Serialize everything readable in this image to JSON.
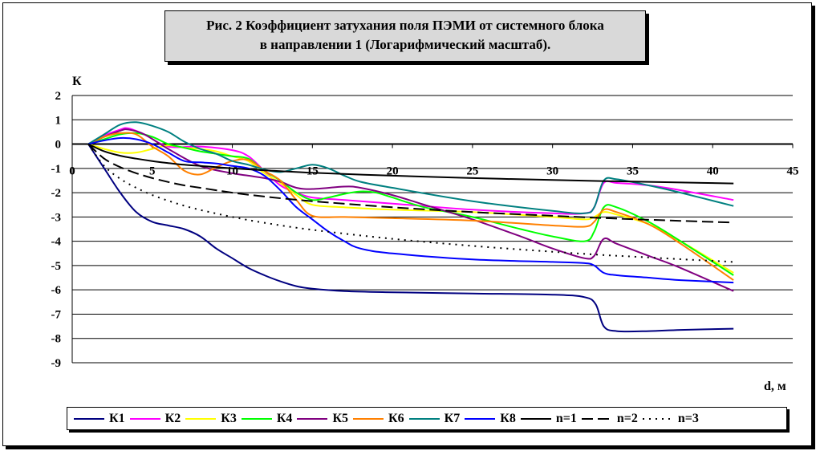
{
  "title": {
    "line1": "Рис. 2 Коэффициент затухания поля ПЭМИ от системного блока",
    "line2": "в направлении 1 (Логарифмический масштаб)."
  },
  "chart_data": {
    "type": "line",
    "title": "Рис. 2 Коэффициент затухания поля ПЭМИ от системного блока в направлении 1 (Логарифмический масштаб).",
    "xlabel": "d, м",
    "ylabel": "К",
    "xlim": [
      0,
      45
    ],
    "ylim": [
      -9,
      2
    ],
    "xticks": [
      0,
      5,
      10,
      15,
      20,
      25,
      30,
      35,
      40,
      45
    ],
    "yticks": [
      2,
      1,
      0,
      -1,
      -2,
      -3,
      -4,
      -5,
      -6,
      -7,
      -8,
      -9
    ],
    "grid": "horizontal",
    "legend_position": "bottom",
    "series": [
      {
        "name": "К1",
        "color": "#000080",
        "dash": "solid",
        "points": [
          [
            1,
            0
          ],
          [
            2,
            -1
          ],
          [
            3,
            -2
          ],
          [
            4,
            -2.8
          ],
          [
            5,
            -3.2
          ],
          [
            6,
            -3.35
          ],
          [
            7,
            -3.5
          ],
          [
            8,
            -3.8
          ],
          [
            9,
            -4.3
          ],
          [
            10,
            -4.7
          ],
          [
            11,
            -5.1
          ],
          [
            12,
            -5.4
          ],
          [
            13,
            -5.65
          ],
          [
            14,
            -5.85
          ],
          [
            15,
            -5.95
          ],
          [
            17,
            -6.05
          ],
          [
            20,
            -6.1
          ],
          [
            25,
            -6.15
          ],
          [
            30,
            -6.2
          ],
          [
            32,
            -6.3
          ],
          [
            32.7,
            -6.6
          ],
          [
            33.2,
            -7.5
          ],
          [
            34,
            -7.7
          ],
          [
            36,
            -7.7
          ],
          [
            38,
            -7.65
          ],
          [
            41.3,
            -7.6
          ]
        ]
      },
      {
        "name": "К2",
        "color": "#ff00ff",
        "dash": "solid",
        "points": [
          [
            1,
            0
          ],
          [
            2,
            0.35
          ],
          [
            3,
            0.6
          ],
          [
            3.5,
            0.65
          ],
          [
            4.5,
            0.4
          ],
          [
            6,
            -0.1
          ],
          [
            8,
            -0.1
          ],
          [
            10,
            -0.25
          ],
          [
            11,
            -0.5
          ],
          [
            12,
            -1.1
          ],
          [
            13,
            -1.7
          ],
          [
            14,
            -2.0
          ],
          [
            15,
            -2.2
          ],
          [
            17,
            -2.3
          ],
          [
            20,
            -2.45
          ],
          [
            25,
            -2.7
          ],
          [
            30,
            -2.85
          ],
          [
            32,
            -2.85
          ],
          [
            32.6,
            -2.6
          ],
          [
            33.2,
            -1.6
          ],
          [
            34,
            -1.6
          ],
          [
            36,
            -1.7
          ],
          [
            38,
            -1.9
          ],
          [
            41.3,
            -2.3
          ]
        ]
      },
      {
        "name": "К3",
        "color": "#ffff00",
        "dash": "solid",
        "points": [
          [
            1,
            0
          ],
          [
            2,
            -0.2
          ],
          [
            3,
            -0.35
          ],
          [
            4,
            -0.35
          ],
          [
            5,
            -0.2
          ],
          [
            6,
            -0.05
          ],
          [
            7,
            -0.15
          ],
          [
            8,
            -0.2
          ],
          [
            9,
            -0.3
          ],
          [
            10,
            -0.5
          ],
          [
            11,
            -0.7
          ],
          [
            12,
            -1.2
          ],
          [
            13,
            -1.6
          ],
          [
            14,
            -2.1
          ],
          [
            15,
            -2.5
          ],
          [
            17,
            -2.6
          ],
          [
            20,
            -2.7
          ],
          [
            25,
            -2.8
          ],
          [
            30,
            -3.0
          ],
          [
            32,
            -3.1
          ],
          [
            32.6,
            -3.0
          ],
          [
            33.2,
            -2.8
          ],
          [
            34,
            -2.9
          ],
          [
            36,
            -3.3
          ],
          [
            38,
            -4.0
          ],
          [
            41.3,
            -5.3
          ]
        ]
      },
      {
        "name": "К4",
        "color": "#00ff00",
        "dash": "solid",
        "points": [
          [
            1,
            0
          ],
          [
            2,
            0.2
          ],
          [
            3,
            0.4
          ],
          [
            4,
            0.45
          ],
          [
            5,
            0.3
          ],
          [
            6,
            0.0
          ],
          [
            7,
            -0.15
          ],
          [
            8,
            -0.3
          ],
          [
            9,
            -0.4
          ],
          [
            10,
            -0.5
          ],
          [
            11,
            -0.6
          ],
          [
            12,
            -1.1
          ],
          [
            13,
            -1.5
          ],
          [
            14,
            -2.0
          ],
          [
            15,
            -2.3
          ],
          [
            16,
            -2.2
          ],
          [
            17,
            -2.05
          ],
          [
            18,
            -1.95
          ],
          [
            19,
            -2.0
          ],
          [
            20,
            -2.2
          ],
          [
            22,
            -2.6
          ],
          [
            25,
            -3.0
          ],
          [
            28,
            -3.5
          ],
          [
            30,
            -3.8
          ],
          [
            32,
            -4.0
          ],
          [
            32.6,
            -3.6
          ],
          [
            33.2,
            -2.6
          ],
          [
            34,
            -2.6
          ],
          [
            36,
            -3.2
          ],
          [
            38,
            -4.0
          ],
          [
            41.3,
            -5.4
          ]
        ]
      },
      {
        "name": "К5",
        "color": "#800080",
        "dash": "solid",
        "points": [
          [
            1,
            0
          ],
          [
            2,
            0.3
          ],
          [
            3,
            0.55
          ],
          [
            3.5,
            0.6
          ],
          [
            4.5,
            0.4
          ],
          [
            6,
            -0.2
          ],
          [
            8,
            -0.9
          ],
          [
            10,
            -1.2
          ],
          [
            11,
            -1.3
          ],
          [
            12,
            -1.4
          ],
          [
            13,
            -1.55
          ],
          [
            14,
            -1.8
          ],
          [
            15,
            -1.85
          ],
          [
            17,
            -1.75
          ],
          [
            18,
            -1.8
          ],
          [
            20,
            -2.1
          ],
          [
            22,
            -2.5
          ],
          [
            25,
            -3.1
          ],
          [
            28,
            -3.8
          ],
          [
            30,
            -4.3
          ],
          [
            32,
            -4.7
          ],
          [
            32.6,
            -4.6
          ],
          [
            33.2,
            -3.9
          ],
          [
            34,
            -4.1
          ],
          [
            36,
            -4.6
          ],
          [
            38,
            -5.1
          ],
          [
            41.3,
            -6.05
          ]
        ]
      },
      {
        "name": "К6",
        "color": "#ff8000",
        "dash": "solid",
        "points": [
          [
            1,
            0
          ],
          [
            2,
            0.3
          ],
          [
            3,
            0.45
          ],
          [
            4,
            0.4
          ],
          [
            5,
            -0.1
          ],
          [
            6,
            -0.5
          ],
          [
            7,
            -1.1
          ],
          [
            8,
            -1.25
          ],
          [
            9,
            -0.95
          ],
          [
            10,
            -0.7
          ],
          [
            11,
            -0.65
          ],
          [
            12,
            -1.1
          ],
          [
            13,
            -1.5
          ],
          [
            14,
            -2.3
          ],
          [
            15,
            -2.95
          ],
          [
            17,
            -3.0
          ],
          [
            20,
            -3.05
          ],
          [
            25,
            -3.15
          ],
          [
            30,
            -3.35
          ],
          [
            32,
            -3.4
          ],
          [
            32.6,
            -3.2
          ],
          [
            33.2,
            -2.7
          ],
          [
            34,
            -2.8
          ],
          [
            36,
            -3.3
          ],
          [
            38,
            -4.1
          ],
          [
            41.3,
            -5.6
          ]
        ]
      },
      {
        "name": "К7",
        "color": "#008080",
        "dash": "solid",
        "points": [
          [
            1,
            0
          ],
          [
            2,
            0.4
          ],
          [
            3,
            0.8
          ],
          [
            4,
            0.9
          ],
          [
            5,
            0.75
          ],
          [
            6,
            0.5
          ],
          [
            7,
            0.1
          ],
          [
            8,
            -0.2
          ],
          [
            9,
            -0.4
          ],
          [
            10,
            -0.7
          ],
          [
            11,
            -0.85
          ],
          [
            12,
            -1.05
          ],
          [
            13,
            -1.15
          ],
          [
            14,
            -1.0
          ],
          [
            15,
            -0.85
          ],
          [
            16,
            -1.0
          ],
          [
            17,
            -1.3
          ],
          [
            18,
            -1.55
          ],
          [
            20,
            -1.8
          ],
          [
            25,
            -2.35
          ],
          [
            30,
            -2.75
          ],
          [
            32,
            -2.85
          ],
          [
            32.6,
            -2.6
          ],
          [
            33.2,
            -1.5
          ],
          [
            34,
            -1.45
          ],
          [
            36,
            -1.7
          ],
          [
            38,
            -2.0
          ],
          [
            41.3,
            -2.55
          ]
        ]
      },
      {
        "name": "К8",
        "color": "#0000ff",
        "dash": "solid",
        "points": [
          [
            1,
            0
          ],
          [
            2,
            0.15
          ],
          [
            3,
            0.25
          ],
          [
            4,
            0.2
          ],
          [
            5,
            0.0
          ],
          [
            6,
            -0.35
          ],
          [
            7,
            -0.7
          ],
          [
            8,
            -0.75
          ],
          [
            9,
            -0.8
          ],
          [
            10,
            -0.9
          ],
          [
            11,
            -1.0
          ],
          [
            12,
            -1.3
          ],
          [
            13,
            -1.9
          ],
          [
            14,
            -2.6
          ],
          [
            15,
            -3.1
          ],
          [
            16,
            -3.6
          ],
          [
            17,
            -4.0
          ],
          [
            18,
            -4.3
          ],
          [
            20,
            -4.5
          ],
          [
            25,
            -4.75
          ],
          [
            30,
            -4.85
          ],
          [
            32,
            -4.9
          ],
          [
            32.6,
            -5.0
          ],
          [
            33.2,
            -5.3
          ],
          [
            34,
            -5.4
          ],
          [
            36,
            -5.5
          ],
          [
            38,
            -5.6
          ],
          [
            41.3,
            -5.7
          ]
        ]
      },
      {
        "name": "n=1",
        "color": "#000000",
        "dash": "solid",
        "points": [
          [
            1,
            0
          ],
          [
            2,
            -0.3
          ],
          [
            3,
            -0.48
          ],
          [
            4,
            -0.6
          ],
          [
            5,
            -0.7
          ],
          [
            6,
            -0.78
          ],
          [
            7,
            -0.85
          ],
          [
            8,
            -0.9
          ],
          [
            9,
            -0.95
          ],
          [
            10,
            -1.0
          ],
          [
            12,
            -1.08
          ],
          [
            15,
            -1.18
          ],
          [
            20,
            -1.3
          ],
          [
            25,
            -1.4
          ],
          [
            30,
            -1.48
          ],
          [
            33,
            -1.52
          ],
          [
            35,
            -1.54
          ],
          [
            38,
            -1.58
          ],
          [
            41.3,
            -1.62
          ]
        ]
      },
      {
        "name": "n=2",
        "color": "#000000",
        "dash": "dashed",
        "points": [
          [
            1,
            0
          ],
          [
            2,
            -0.6
          ],
          [
            3,
            -0.95
          ],
          [
            4,
            -1.2
          ],
          [
            5,
            -1.4
          ],
          [
            6,
            -1.56
          ],
          [
            7,
            -1.7
          ],
          [
            8,
            -1.8
          ],
          [
            9,
            -1.9
          ],
          [
            10,
            -2.0
          ],
          [
            12,
            -2.16
          ],
          [
            15,
            -2.35
          ],
          [
            20,
            -2.6
          ],
          [
            25,
            -2.8
          ],
          [
            30,
            -2.95
          ],
          [
            33,
            -3.04
          ],
          [
            35,
            -3.09
          ],
          [
            38,
            -3.16
          ],
          [
            41.3,
            -3.23
          ]
        ]
      },
      {
        "name": "n=3",
        "color": "#000000",
        "dash": "dotted",
        "points": [
          [
            1,
            0
          ],
          [
            2,
            -0.9
          ],
          [
            3,
            -1.43
          ],
          [
            4,
            -1.8
          ],
          [
            5,
            -2.1
          ],
          [
            6,
            -2.33
          ],
          [
            7,
            -2.54
          ],
          [
            8,
            -2.71
          ],
          [
            9,
            -2.86
          ],
          [
            10,
            -3.0
          ],
          [
            12,
            -3.24
          ],
          [
            15,
            -3.53
          ],
          [
            20,
            -3.9
          ],
          [
            25,
            -4.19
          ],
          [
            30,
            -4.43
          ],
          [
            33,
            -4.56
          ],
          [
            35,
            -4.63
          ],
          [
            38,
            -4.74
          ],
          [
            41.3,
            -4.85
          ]
        ]
      }
    ]
  }
}
